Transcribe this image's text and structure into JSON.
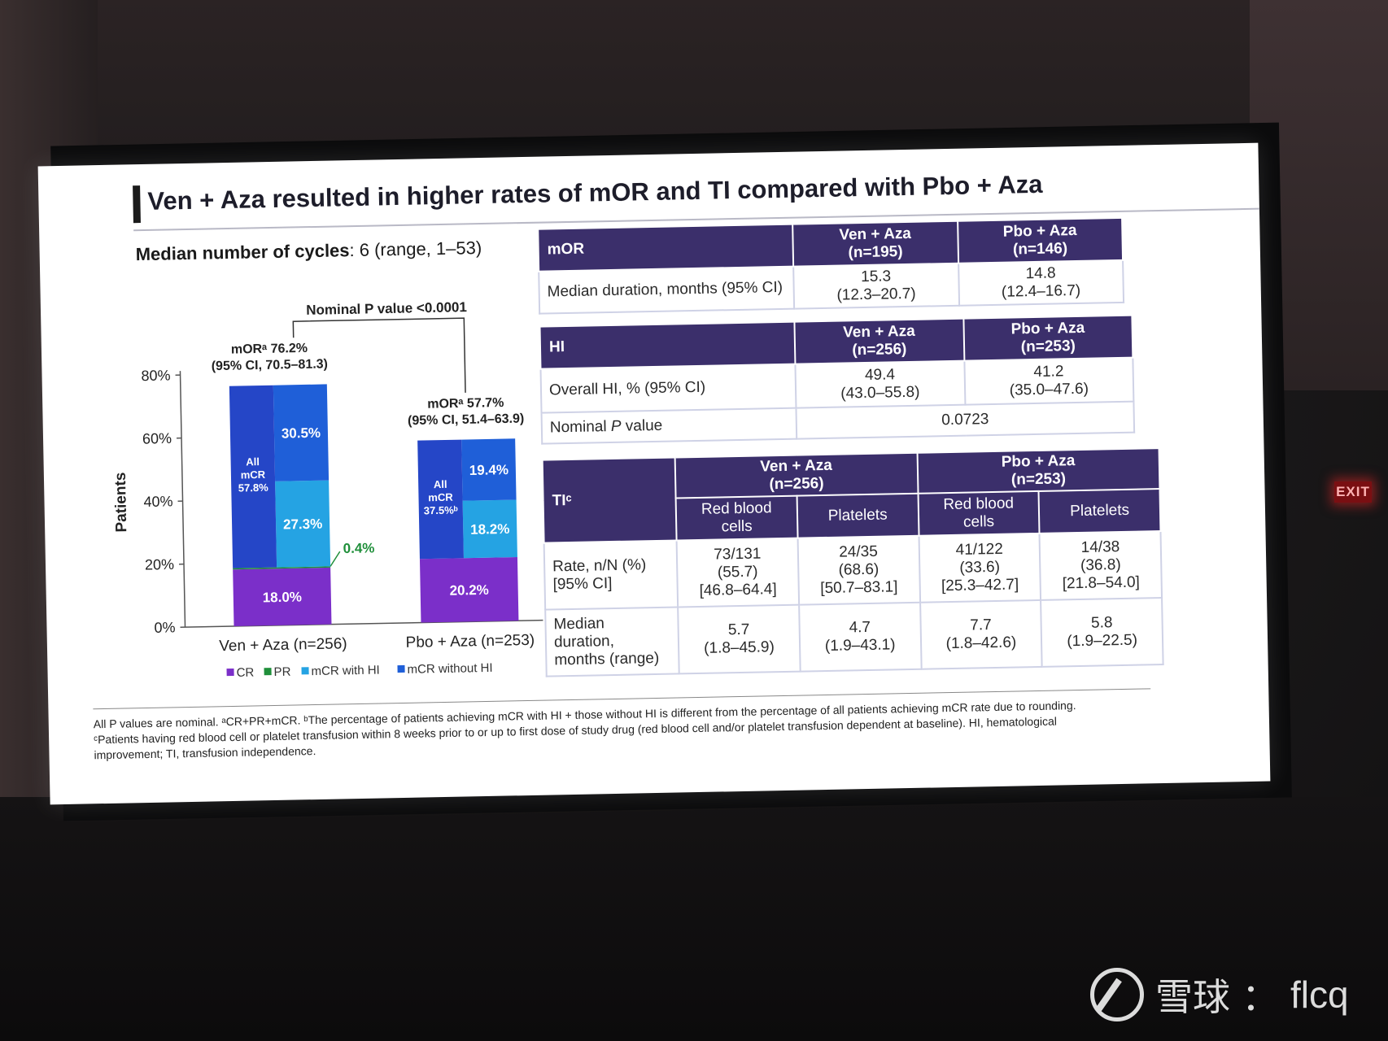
{
  "slide": {
    "title": "Ven + Aza resulted in higher rates of mOR and TI compared with Pbo + Aza",
    "median_label": "Median number of cycles",
    "median_value": ": 6 (range, 1–53)"
  },
  "chart_data": {
    "type": "bar",
    "stacked": true,
    "title": "",
    "ylabel": "Patients",
    "ylim": [
      0,
      80
    ],
    "yticks": [
      "0%",
      "20%",
      "40%",
      "60%",
      "80%"
    ],
    "categories": [
      "Ven + Aza (n=256)",
      "Pbo + Aza (n=253)"
    ],
    "series": [
      {
        "name": "CR",
        "color": "#7b2fc9",
        "values": [
          18.0,
          20.2
        ],
        "labels": [
          "18.0%",
          "20.2%"
        ]
      },
      {
        "name": "PR",
        "color": "#1f8f3a",
        "values": [
          0.4,
          0.0
        ],
        "labels": [
          "0.4%",
          ""
        ]
      },
      {
        "name": "mCR with HI",
        "color": "#25a3e3",
        "values": [
          27.3,
          18.2
        ],
        "labels": [
          "27.3%",
          "18.2%"
        ]
      },
      {
        "name": "mCR without HI",
        "color": "#1f5fd8",
        "values": [
          30.5,
          19.4
        ],
        "labels": [
          "30.5%",
          "19.4%"
        ]
      }
    ],
    "inner_labels": [
      [
        "All",
        "mCR",
        "57.8%"
      ],
      [
        "All",
        "mCR",
        "37.5%ᵇ"
      ]
    ],
    "annotations": {
      "bar1": [
        "mORᵃ 76.2%",
        "(95% CI, 70.5–81.3)"
      ],
      "bar2": [
        "mORᵃ 57.7%",
        "(95% CI, 51.4–63.9)"
      ],
      "p_value": "Nominal P value <0.0001"
    },
    "legend_position": "bottom"
  },
  "mor_table": {
    "header": [
      "mOR",
      "Ven + Aza",
      "(n=195)",
      "Pbo + Aza",
      "(n=146)"
    ],
    "row": {
      "label": "Median duration, months (95% CI)",
      "v1": "15.3",
      "v1ci": "(12.3–20.7)",
      "v2": "14.8",
      "v2ci": "(12.4–16.7)"
    }
  },
  "hi_table": {
    "header": [
      "HI",
      "Ven + Aza",
      "(n=256)",
      "Pbo + Aza",
      "(n=253)"
    ],
    "row1": {
      "label": "Overall HI, % (95% CI)",
      "v1": "49.4",
      "v1ci": "(43.0–55.8)",
      "v2": "41.2",
      "v2ci": "(35.0–47.6)"
    },
    "row2": {
      "label_a": "Nominal ",
      "label_p": "P",
      "label_b": " value",
      "value": "0.0723"
    }
  },
  "ti_table": {
    "corner": "TIᶜ",
    "group1": [
      "Ven + Aza",
      "(n=256)"
    ],
    "group2": [
      "Pbo + Aza",
      "(n=253)"
    ],
    "sub": [
      "Red blood",
      "cells",
      "Platelets",
      "Red blood",
      "cells",
      "Platelets"
    ],
    "rate_label": [
      "Rate, n/N (%)",
      "[95% CI]"
    ],
    "rate": [
      [
        "73/131",
        "(55.7)",
        "[46.8–64.4]"
      ],
      [
        "24/35",
        "(68.6)",
        "[50.7–83.1]"
      ],
      [
        "41/122",
        "(33.6)",
        "[25.3–42.7]"
      ],
      [
        "14/38",
        "(36.8)",
        "[21.8–54.0]"
      ]
    ],
    "dur_label": [
      "Median",
      "duration,",
      "months (range)"
    ],
    "dur": [
      [
        "5.7",
        "(1.8–45.9)"
      ],
      [
        "4.7",
        "(1.9–43.1)"
      ],
      [
        "7.7",
        "(1.8–42.6)"
      ],
      [
        "5.8",
        "(1.9–22.5)"
      ]
    ]
  },
  "footnote": {
    "line1": "All P values are nominal. ᵃCR+PR+mCR. ᵇThe percentage of patients achieving mCR with HI + those without HI is different from the percentage of all patients achieving mCR rate due to rounding.",
    "line2": "ᶜPatients having red blood cell or platelet transfusion within 8 weeks prior to or up to first dose of study drug (red blood cell and/or platelet transfusion dependent at baseline). HI, hematological",
    "line3": "improvement; TI, transfusion independence."
  },
  "exit_sign": "EXIT",
  "watermark": {
    "brand": "雪球",
    "sep": "：",
    "user": "flcq"
  }
}
